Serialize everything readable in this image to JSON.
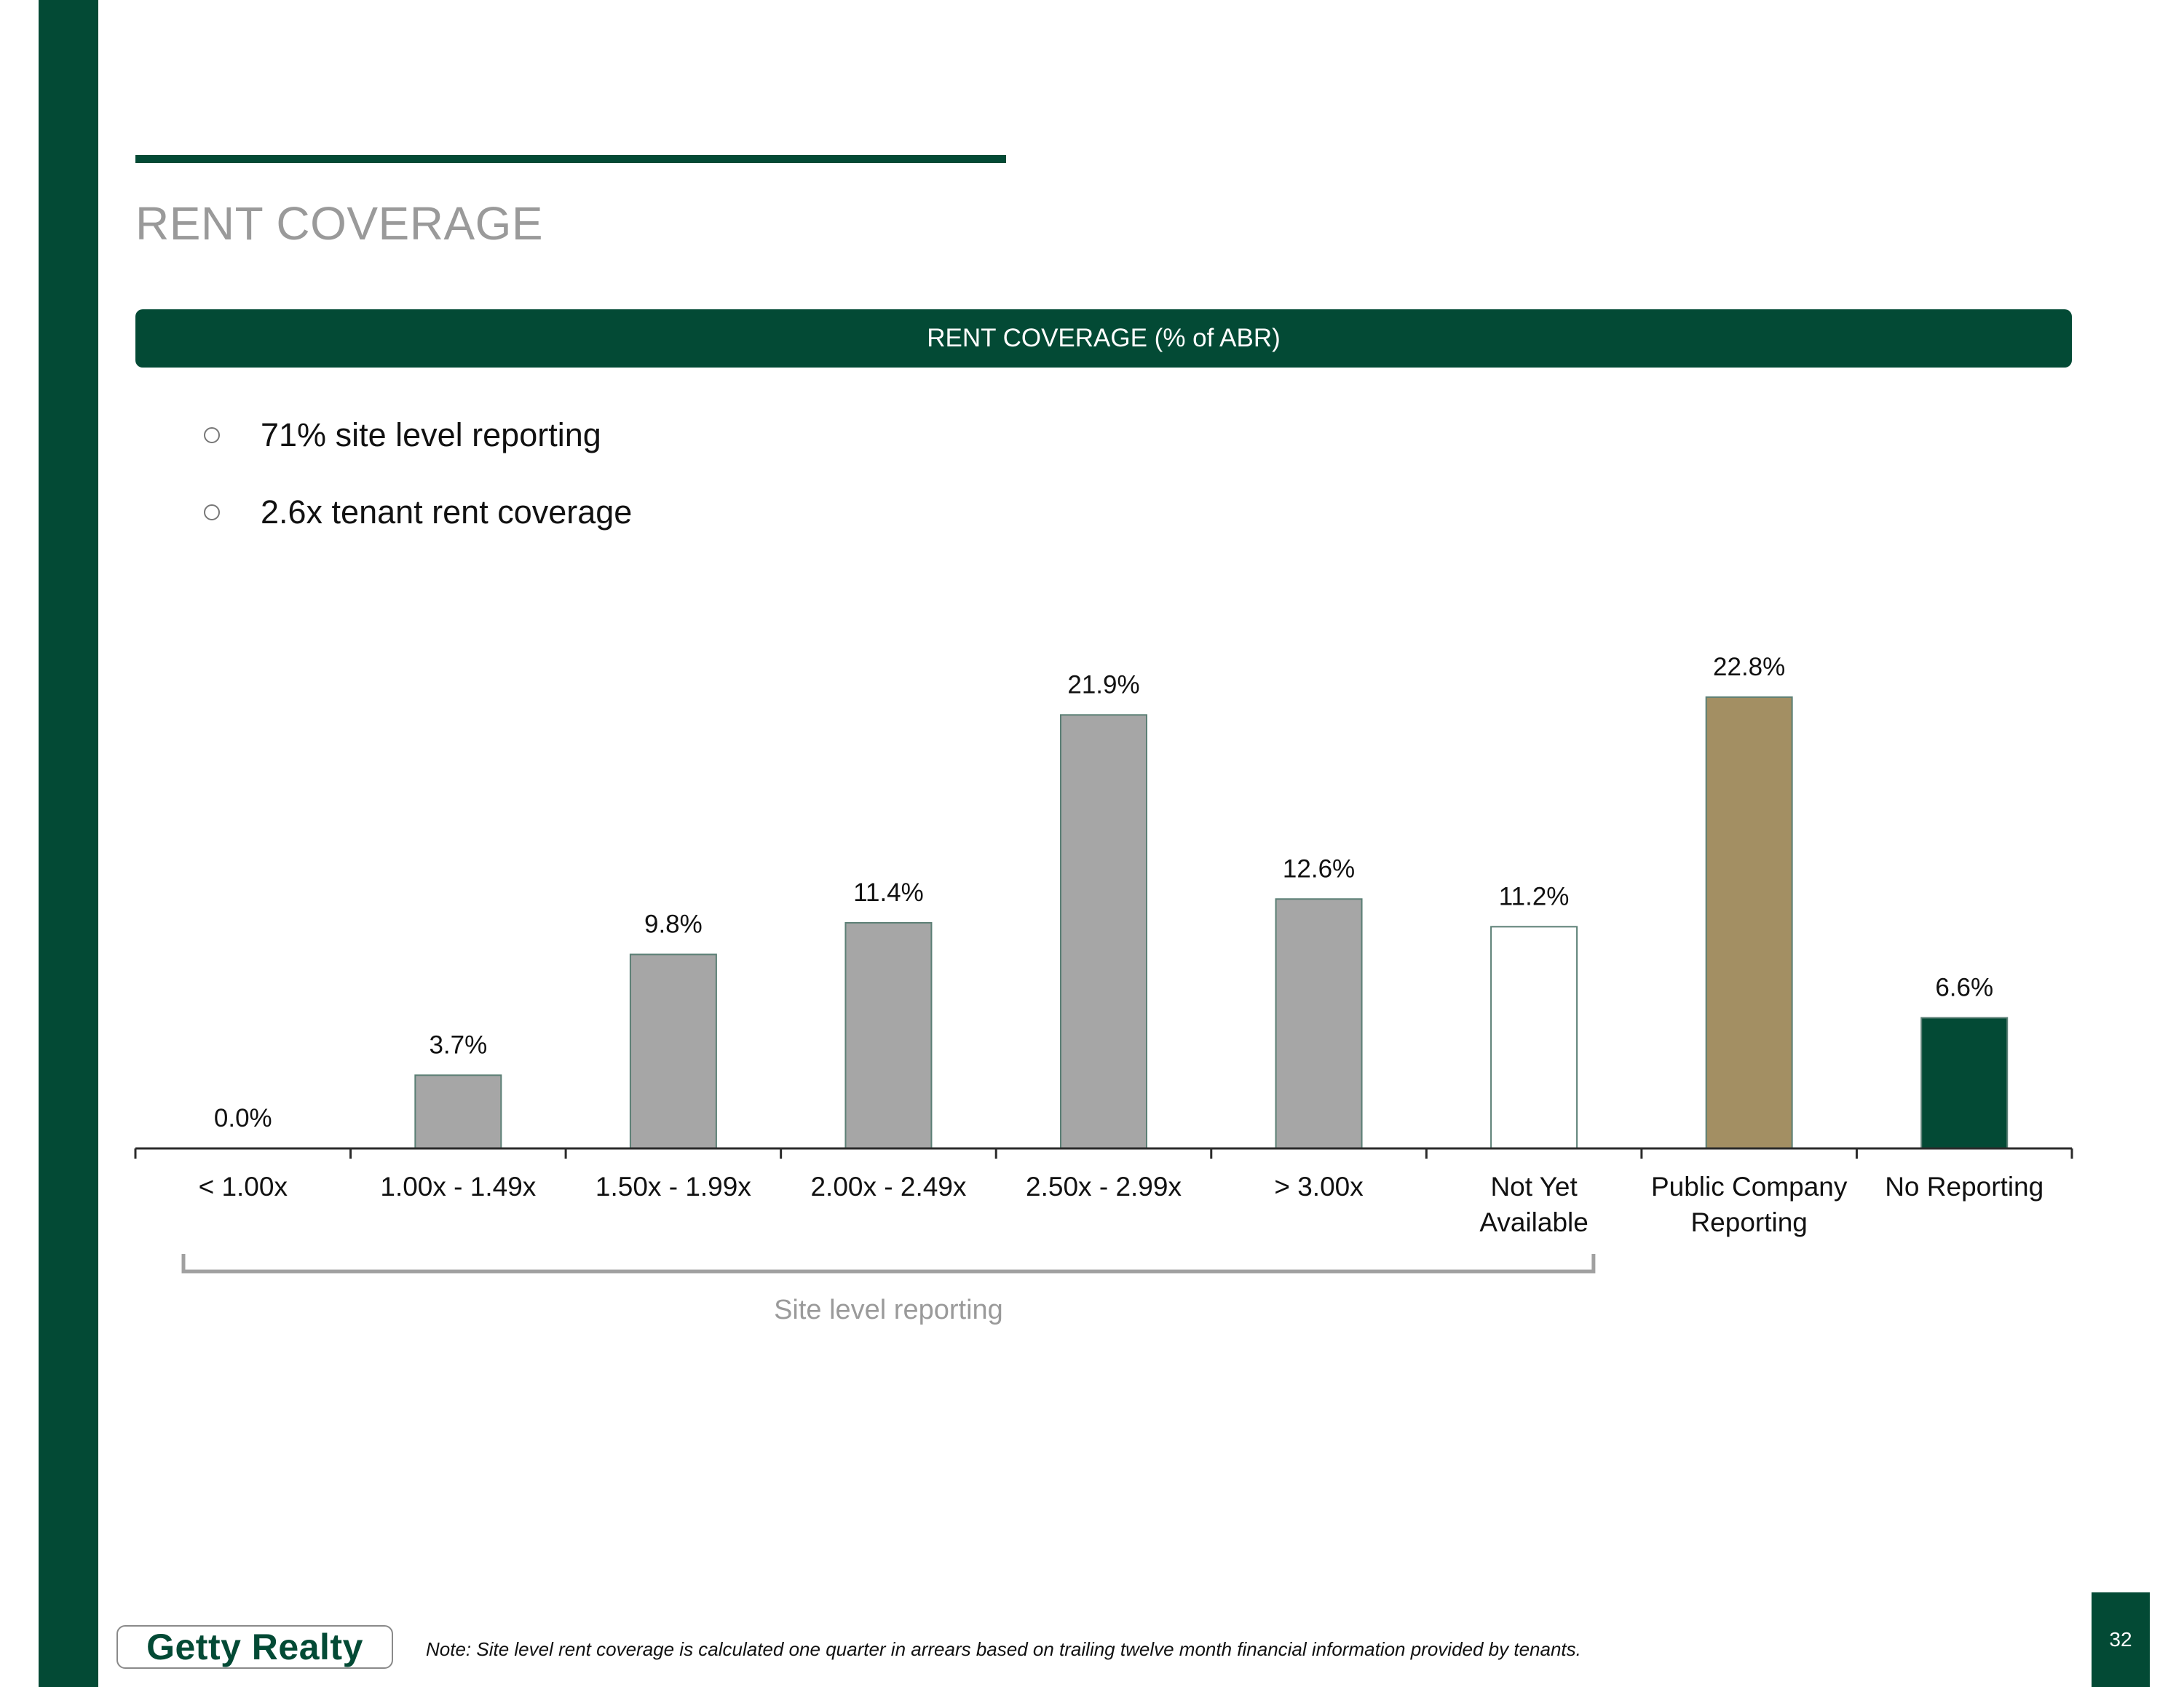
{
  "page": {
    "title": "RENT COVERAGE",
    "banner": "RENT COVERAGE (% of ABR)",
    "bullets": [
      "71% site level reporting",
      "2.6x tenant rent coverage"
    ],
    "bracket_label": "Site level reporting",
    "logo_text": "Getty Realty",
    "note": "Note: Site level rent coverage is calculated one quarter in arrears based on trailing twelve month financial information provided by tenants.",
    "page_number": "32"
  },
  "colors": {
    "brand_green": "#034a35",
    "bar_grey": "#a6a6a6",
    "bar_tan": "#a38f63",
    "bar_outline": "#5b7f75",
    "bar_white": "#ffffff",
    "title_grey": "#9a9a9a"
  },
  "chart_data": {
    "type": "bar",
    "title": "RENT COVERAGE (% of ABR)",
    "xlabel": "",
    "ylabel": "",
    "ylim": [
      0,
      25
    ],
    "grid": false,
    "categories": [
      "< 1.00x",
      "1.00x - 1.49x",
      "1.50x - 1.99x",
      "2.00x - 2.49x",
      "2.50x - 2.99x",
      "> 3.00x",
      "Not Yet Available",
      "Public Company Reporting",
      "No Reporting"
    ],
    "category_lines": [
      [
        "< 1.00x"
      ],
      [
        "1.00x - 1.49x"
      ],
      [
        "1.50x - 1.99x"
      ],
      [
        "2.00x - 2.49x"
      ],
      [
        "2.50x - 2.99x"
      ],
      [
        "> 3.00x"
      ],
      [
        "Not Yet",
        "Available"
      ],
      [
        "Public Company",
        "Reporting"
      ],
      [
        "No Reporting"
      ]
    ],
    "values": [
      0.0,
      3.7,
      9.8,
      11.4,
      21.9,
      12.6,
      11.2,
      22.8,
      6.6
    ],
    "data_labels": [
      "0.0%",
      "3.7%",
      "9.8%",
      "11.4%",
      "21.9%",
      "12.6%",
      "11.2%",
      "22.8%",
      "6.6%"
    ],
    "bar_colors": [
      "#a6a6a6",
      "#a6a6a6",
      "#a6a6a6",
      "#a6a6a6",
      "#a6a6a6",
      "#a6a6a6",
      "#ffffff",
      "#a38f63",
      "#034a35"
    ],
    "annotation": {
      "text": "Site level reporting",
      "spans_categories": [
        0,
        6
      ]
    }
  }
}
